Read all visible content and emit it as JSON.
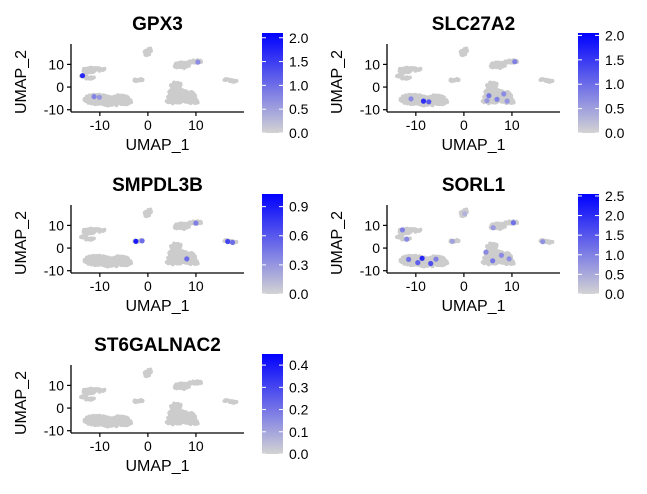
{
  "chart_data": [
    {
      "type": "scatter",
      "title": "GPX3",
      "xlabel": "UMAP_1",
      "ylabel": "UMAP_2",
      "xlim": [
        -16,
        20
      ],
      "ylim": [
        -11,
        19
      ],
      "x_ticks": [
        -10,
        0,
        10
      ],
      "y_ticks": [
        -10,
        0,
        10
      ],
      "legend": "right",
      "colorbar": {
        "min": 0.0,
        "max": 2.1,
        "ticks": [
          "0.0",
          "0.5",
          "1.0",
          "1.5",
          "2.0"
        ],
        "tick_values": [
          0.0,
          0.5,
          1.0,
          1.5,
          2.0
        ]
      },
      "expressing_points": [
        {
          "x": -13.6,
          "y": 5.0,
          "v": 1.7
        },
        {
          "x": -11.2,
          "y": -4.2,
          "v": 0.8
        },
        {
          "x": -10.1,
          "y": -4.5,
          "v": 0.6
        },
        {
          "x": 10.4,
          "y": 11.0,
          "v": 0.7
        }
      ]
    },
    {
      "type": "scatter",
      "title": "SLC27A2",
      "xlabel": "UMAP_1",
      "ylabel": "UMAP_2",
      "xlim": [
        -16,
        20
      ],
      "ylim": [
        -11,
        19
      ],
      "x_ticks": [
        -10,
        0,
        10
      ],
      "y_ticks": [
        -10,
        0,
        10
      ],
      "legend": "right",
      "colorbar": {
        "min": 0.0,
        "max": 2.05,
        "ticks": [
          "0.0",
          "0.5",
          "1.0",
          "1.5",
          "2.0"
        ],
        "tick_values": [
          0.0,
          0.5,
          1.0,
          1.5,
          2.0
        ]
      },
      "expressing_points": [
        {
          "x": -8.4,
          "y": -6.2,
          "v": 1.6
        },
        {
          "x": -7.3,
          "y": -6.5,
          "v": 1.2
        },
        {
          "x": -11.0,
          "y": -5.2,
          "v": 0.7
        },
        {
          "x": 5.2,
          "y": -3.8,
          "v": 0.9
        },
        {
          "x": 6.9,
          "y": -5.4,
          "v": 0.8
        },
        {
          "x": 8.3,
          "y": -3.0,
          "v": 0.7
        },
        {
          "x": 4.8,
          "y": -6.0,
          "v": 0.6
        },
        {
          "x": 10.6,
          "y": 11.2,
          "v": 0.8
        },
        {
          "x": 9.0,
          "y": -6.2,
          "v": 0.6
        }
      ]
    },
    {
      "type": "scatter",
      "title": "SMPDL3B",
      "xlabel": "UMAP_1",
      "ylabel": "UMAP_2",
      "xlim": [
        -16,
        20
      ],
      "ylim": [
        -11,
        19
      ],
      "x_ticks": [
        -10,
        0,
        10
      ],
      "y_ticks": [
        -10,
        0,
        10
      ],
      "legend": "right",
      "colorbar": {
        "min": 0.0,
        "max": 1.03,
        "ticks": [
          "0.0",
          "0.3",
          "0.6",
          "0.9"
        ],
        "tick_values": [
          0.0,
          0.3,
          0.6,
          0.9
        ]
      },
      "expressing_points": [
        {
          "x": -2.5,
          "y": 3.0,
          "v": 0.9
        },
        {
          "x": -1.2,
          "y": 3.2,
          "v": 0.5
        },
        {
          "x": 16.6,
          "y": 2.9,
          "v": 0.7
        },
        {
          "x": 17.6,
          "y": 2.5,
          "v": 0.5
        },
        {
          "x": 8.1,
          "y": -4.8,
          "v": 0.5
        },
        {
          "x": 10.0,
          "y": 11.0,
          "v": 0.4
        }
      ]
    },
    {
      "type": "scatter",
      "title": "SORL1",
      "xlabel": "UMAP_1",
      "ylabel": "UMAP_2",
      "xlim": [
        -16,
        20
      ],
      "ylim": [
        -11,
        19
      ],
      "x_ticks": [
        -10,
        0,
        10
      ],
      "y_ticks": [
        -10,
        0,
        10
      ],
      "legend": "right",
      "colorbar": {
        "min": 0.0,
        "max": 2.55,
        "ticks": [
          "0.0",
          "0.5",
          "1.0",
          "1.5",
          "2.0",
          "2.5"
        ],
        "tick_values": [
          0.0,
          0.5,
          1.0,
          1.5,
          2.0,
          2.5
        ]
      },
      "expressing_points": [
        {
          "x": -12.8,
          "y": 8.0,
          "v": 1.0
        },
        {
          "x": -11.9,
          "y": 3.9,
          "v": 0.9
        },
        {
          "x": -11.5,
          "y": -5.0,
          "v": 1.2
        },
        {
          "x": -9.6,
          "y": -6.4,
          "v": 1.4
        },
        {
          "x": -8.7,
          "y": -4.5,
          "v": 2.1
        },
        {
          "x": -6.9,
          "y": -6.8,
          "v": 1.6
        },
        {
          "x": -5.8,
          "y": -4.9,
          "v": 1.0
        },
        {
          "x": 4.6,
          "y": -1.8,
          "v": 0.9
        },
        {
          "x": 6.0,
          "y": -5.6,
          "v": 1.1
        },
        {
          "x": 7.8,
          "y": -3.2,
          "v": 0.9
        },
        {
          "x": 9.4,
          "y": -4.8,
          "v": 0.8
        },
        {
          "x": 10.3,
          "y": 11.2,
          "v": 1.2
        },
        {
          "x": 6.1,
          "y": 9.0,
          "v": 0.7
        },
        {
          "x": 16.4,
          "y": 2.8,
          "v": 0.8
        },
        {
          "x": -2.4,
          "y": 3.0,
          "v": 0.6
        },
        {
          "x": 0.2,
          "y": 15.2,
          "v": 0.4
        }
      ]
    },
    {
      "type": "scatter",
      "title": "ST6GALNAC2",
      "xlabel": "UMAP_1",
      "ylabel": "UMAP_2",
      "xlim": [
        -16,
        20
      ],
      "ylim": [
        -11,
        19
      ],
      "x_ticks": [
        -10,
        0,
        10
      ],
      "y_ticks": [
        -10,
        0,
        10
      ],
      "legend": "right",
      "colorbar": {
        "min": 0.0,
        "max": 0.45,
        "ticks": [
          "0.0",
          "0.1",
          "0.2",
          "0.3",
          "0.4"
        ],
        "tick_values": [
          0.0,
          0.1,
          0.2,
          0.3,
          0.4
        ]
      },
      "expressing_points": []
    }
  ],
  "colors": {
    "low": "#d3d3d3",
    "high": "#0000ff",
    "background_cells": "#cccccc",
    "axis": "#000000"
  },
  "cell_clusters": [
    {
      "cx": -12.3,
      "cy": 7.4,
      "rx": 1.2,
      "ry": 1.4
    },
    {
      "cx": -10.6,
      "cy": 7.8,
      "rx": 1.9,
      "ry": 0.7
    },
    {
      "cx": -13.4,
      "cy": 4.9,
      "rx": 0.6,
      "ry": 0.5
    },
    {
      "cx": -12.0,
      "cy": 4.0,
      "rx": 1.0,
      "ry": 0.5
    },
    {
      "cx": -10.5,
      "cy": -5.4,
      "rx": 2.8,
      "ry": 2.2
    },
    {
      "cx": -7.4,
      "cy": -6.3,
      "rx": 3.0,
      "ry": 2.0
    },
    {
      "cx": -5.8,
      "cy": -5.0,
      "rx": 1.8,
      "ry": 1.6
    },
    {
      "cx": -4.6,
      "cy": -6.4,
      "rx": 1.2,
      "ry": 1.3
    },
    {
      "cx": -2.3,
      "cy": 3.1,
      "rx": 0.7,
      "ry": 0.6
    },
    {
      "cx": -1.6,
      "cy": 3.1,
      "rx": 0.6,
      "ry": 0.5
    },
    {
      "cx": -0.2,
      "cy": 15.0,
      "rx": 0.6,
      "ry": 1.2
    },
    {
      "cx": 0.4,
      "cy": 16.3,
      "rx": 0.5,
      "ry": 0.8
    },
    {
      "cx": 7.0,
      "cy": 9.6,
      "rx": 1.6,
      "ry": 1.4
    },
    {
      "cx": 9.4,
      "cy": 11.1,
      "rx": 1.3,
      "ry": 0.7
    },
    {
      "cx": 10.5,
      "cy": 11.3,
      "rx": 0.7,
      "ry": 0.6
    },
    {
      "cx": 5.8,
      "cy": 0.9,
      "rx": 1.2,
      "ry": 1.4
    },
    {
      "cx": 6.2,
      "cy": -3.6,
      "rx": 2.2,
      "ry": 3.0
    },
    {
      "cx": 8.2,
      "cy": -4.2,
      "rx": 1.8,
      "ry": 2.4
    },
    {
      "cx": 5.4,
      "cy": -6.3,
      "rx": 1.6,
      "ry": 1.0
    },
    {
      "cx": 9.5,
      "cy": -6.4,
      "rx": 1.1,
      "ry": 0.9
    },
    {
      "cx": 16.5,
      "cy": 3.0,
      "rx": 0.8,
      "ry": 0.6
    },
    {
      "cx": 17.8,
      "cy": 2.7,
      "rx": 0.7,
      "ry": 0.5
    }
  ]
}
